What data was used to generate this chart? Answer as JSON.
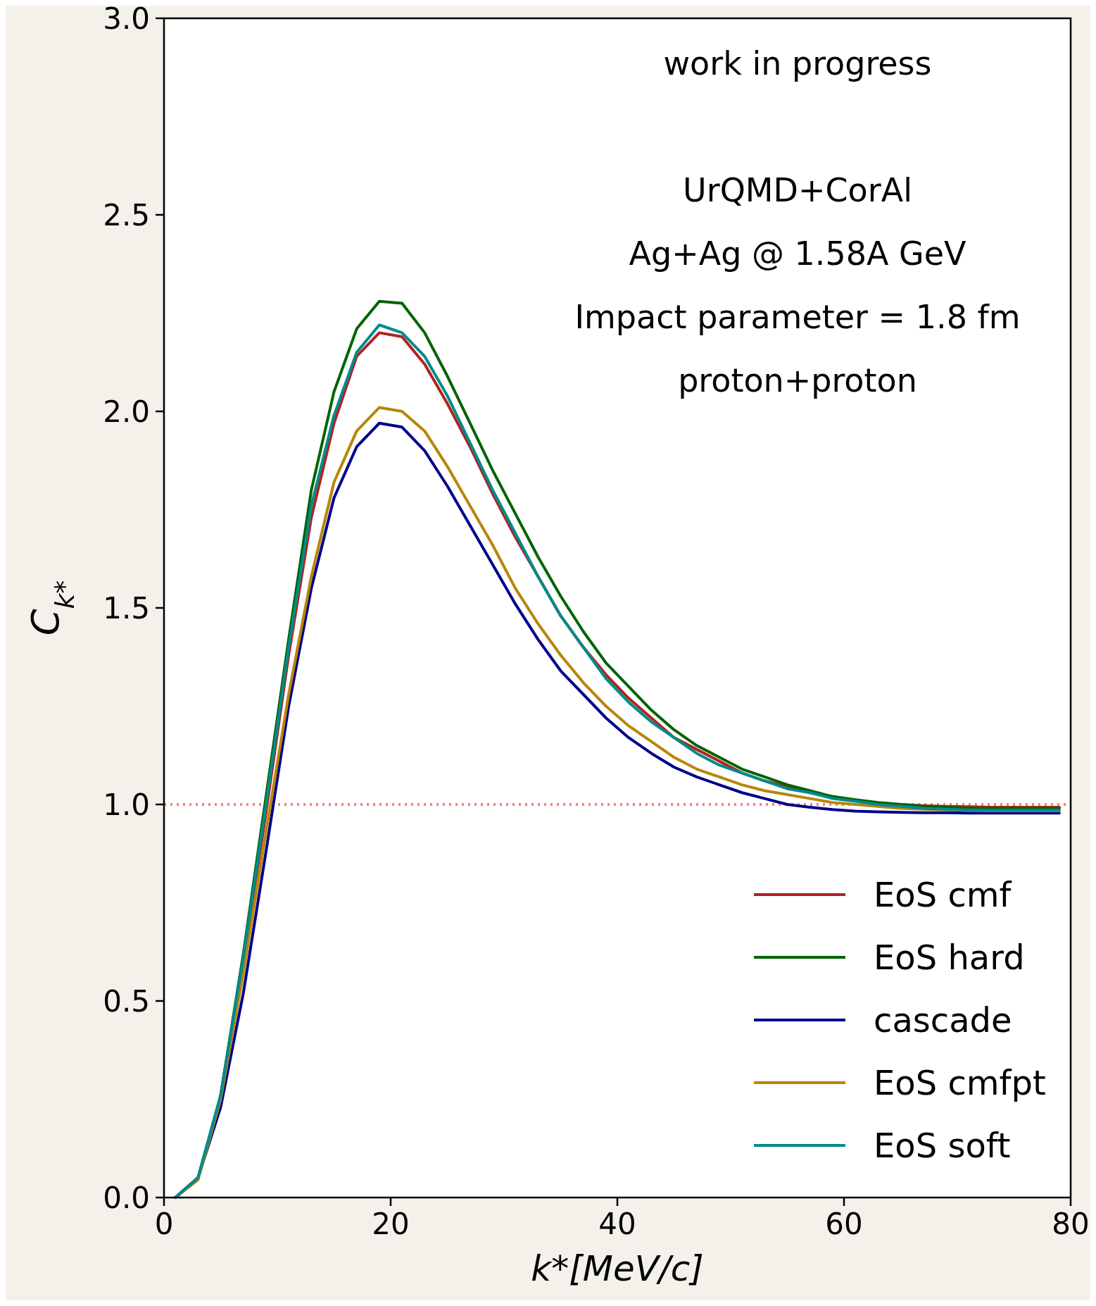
{
  "chart_data": {
    "type": "line",
    "xlabel": "k*[MeV/c]",
    "ylabel": "C$_{k*}$",
    "x": [
      1,
      3,
      5,
      7,
      9,
      11,
      13,
      15,
      17,
      19,
      21,
      23,
      25,
      27,
      29,
      31,
      33,
      35,
      37,
      39,
      41,
      43,
      45,
      47,
      49,
      51,
      53,
      55,
      57,
      59,
      61,
      63,
      65,
      67,
      69,
      71,
      73,
      75,
      77,
      79
    ],
    "series": [
      {
        "name": "EoS cmf",
        "color": "#b22222",
        "values": [
          null,
          null,
          0.26,
          0.6,
          0.98,
          1.38,
          1.73,
          1.97,
          2.14,
          2.2,
          2.19,
          2.12,
          2.02,
          1.91,
          1.79,
          1.68,
          1.58,
          1.48,
          1.4,
          1.33,
          1.27,
          1.22,
          1.17,
          1.14,
          1.11,
          1.08,
          1.06,
          1.045,
          1.03,
          1.02,
          1.01,
          1.003,
          1.0,
          0.997,
          0.995,
          0.994,
          0.993,
          0.993,
          0.993,
          0.993
        ]
      },
      {
        "name": "EoS hard",
        "color": "#006400",
        "values": [
          0,
          0.05,
          0.26,
          0.62,
          1.02,
          1.42,
          1.8,
          2.05,
          2.21,
          2.28,
          2.275,
          2.2,
          2.09,
          1.97,
          1.85,
          1.74,
          1.63,
          1.53,
          1.44,
          1.36,
          1.3,
          1.24,
          1.19,
          1.15,
          1.12,
          1.09,
          1.07,
          1.05,
          1.035,
          1.02,
          1.012,
          1.005,
          1.0,
          0.995,
          0.993,
          0.99,
          0.99,
          0.99,
          0.99,
          0.99
        ]
      },
      {
        "name": "cascade",
        "color": "#00008b",
        "values": [
          0,
          0.05,
          0.23,
          0.52,
          0.88,
          1.25,
          1.55,
          1.78,
          1.91,
          1.97,
          1.96,
          1.9,
          1.81,
          1.71,
          1.61,
          1.51,
          1.42,
          1.34,
          1.28,
          1.22,
          1.17,
          1.13,
          1.095,
          1.07,
          1.05,
          1.03,
          1.015,
          1.0,
          0.993,
          0.987,
          0.983,
          0.981,
          0.98,
          0.979,
          0.979,
          0.978,
          0.978,
          0.978,
          0.978,
          0.978
        ]
      },
      {
        "name": "EoS cmfpt",
        "color": "#b8860b",
        "values": [
          0,
          0.045,
          0.25,
          0.57,
          0.93,
          1.28,
          1.58,
          1.82,
          1.95,
          2.01,
          2.0,
          1.95,
          1.86,
          1.76,
          1.66,
          1.55,
          1.46,
          1.38,
          1.31,
          1.25,
          1.2,
          1.16,
          1.12,
          1.09,
          1.07,
          1.05,
          1.035,
          1.025,
          1.015,
          1.005,
          1.0,
          0.995,
          0.99,
          0.988,
          0.986,
          0.985,
          0.984,
          0.984,
          0.984,
          0.984
        ]
      },
      {
        "name": "EoS soft",
        "color": "#008b8b",
        "values": [
          0,
          0.05,
          0.26,
          0.61,
          1.0,
          1.4,
          1.76,
          1.99,
          2.15,
          2.22,
          2.2,
          2.14,
          2.04,
          1.92,
          1.8,
          1.69,
          1.58,
          1.48,
          1.4,
          1.32,
          1.26,
          1.21,
          1.17,
          1.13,
          1.1,
          1.08,
          1.06,
          1.04,
          1.03,
          1.015,
          1.008,
          1.0,
          0.995,
          0.99,
          0.988,
          0.986,
          0.985,
          0.985,
          0.985,
          0.985
        ]
      }
    ],
    "xlim": [
      0,
      80
    ],
    "xticks": [
      0,
      20,
      40,
      60,
      80
    ],
    "ylim": [
      0,
      3
    ],
    "yticks": [
      {
        "value": 0,
        "label": "0.0"
      },
      {
        "value": 0.5,
        "label": "0.5"
      },
      {
        "value": 1,
        "label": "1.0"
      },
      {
        "value": 1.5,
        "label": "1.5"
      },
      {
        "value": 2,
        "label": "2.0"
      },
      {
        "value": 2.5,
        "label": "2.5"
      },
      {
        "value": 3,
        "label": "3.0"
      }
    ],
    "ref_lines": [
      {
        "axis": "y",
        "value": 1,
        "color": "#fa8072",
        "line_style": "dotted"
      }
    ],
    "annotations": [
      "work in progress",
      "UrQMD+CorAl",
      "Ag+Ag @ 1.58A GeV",
      "Impact parameter = 1.8 fm",
      "proton+proton"
    ],
    "legend": "bottom right",
    "grid": false,
    "line_style": "solid",
    "marker": "none"
  }
}
